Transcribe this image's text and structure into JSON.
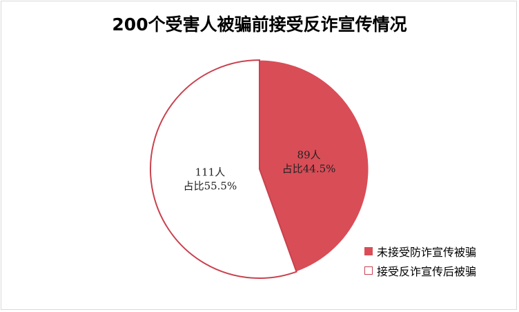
{
  "chart_data": {
    "type": "pie",
    "title": "200个受害人被骗前接受反诈宣传情况",
    "total": 200,
    "start_angle_deg": 0,
    "direction": "clockwise",
    "slices": [
      {
        "name": "未接受防诈宣传被骗",
        "value": 89,
        "percent": 44.5,
        "label_line1": "89人",
        "label_line2": "占比44.5%",
        "fill": "#d94d57",
        "stroke": "#ffffff"
      },
      {
        "name": "接受反诈宣传后被骗",
        "value": 111,
        "percent": 55.5,
        "label_line1": "111人",
        "label_line2": "占比55.5%",
        "fill": "#ffffff",
        "stroke": "#c9414d"
      }
    ],
    "legend_position": "bottom-right"
  }
}
